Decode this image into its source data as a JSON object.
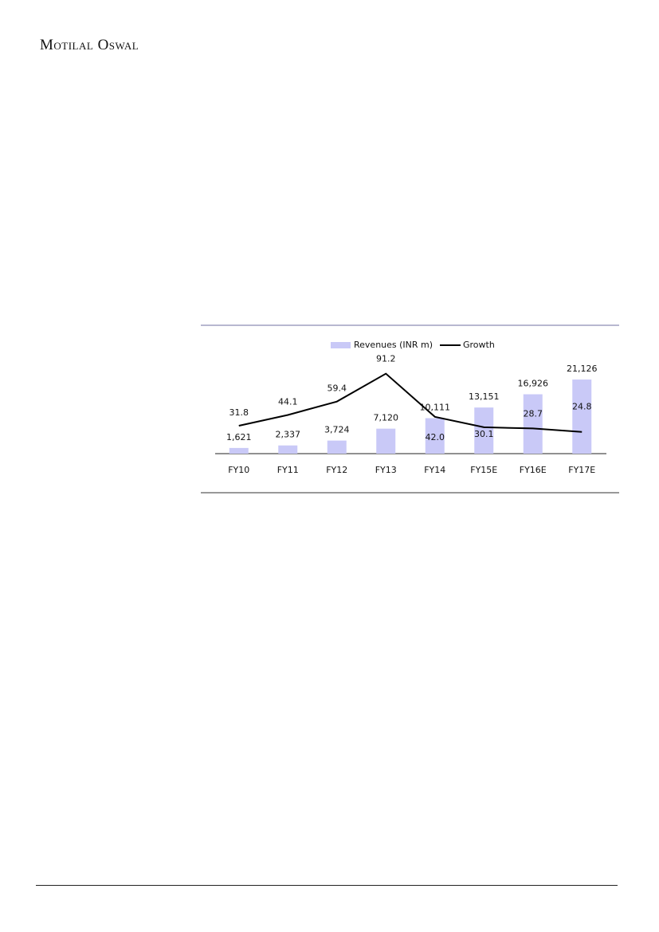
{
  "header": {
    "brand": "Motilal Oswal"
  },
  "chart_data": {
    "type": "bar-line",
    "categories": [
      "FY10",
      "FY11",
      "FY12",
      "FY13",
      "FY14",
      "FY15E",
      "FY16E",
      "FY17E"
    ],
    "series": [
      {
        "name": "Revenues (INR m)",
        "type": "bar",
        "color": "#c9c9f7",
        "values": [
          1621,
          2337,
          3724,
          7120,
          10111,
          13151,
          16926,
          21126
        ],
        "value_labels": [
          "1,621",
          "2,337",
          "3,724",
          "7,120",
          "10,111",
          "13,151",
          "16,926",
          "21,126"
        ]
      },
      {
        "name": "Growth",
        "type": "line",
        "color": "#000000",
        "axis": "y2",
        "values": [
          31.8,
          44.1,
          59.4,
          91.2,
          42.0,
          30.1,
          28.7,
          24.8
        ],
        "value_labels": [
          "31.8",
          "44.1",
          "59.4",
          "91.2",
          "42.0",
          "30.1",
          "28.7",
          "24.8"
        ]
      }
    ],
    "ylim": [
      0,
      25000
    ],
    "y2lim": [
      0,
      100
    ],
    "legend": "top"
  }
}
